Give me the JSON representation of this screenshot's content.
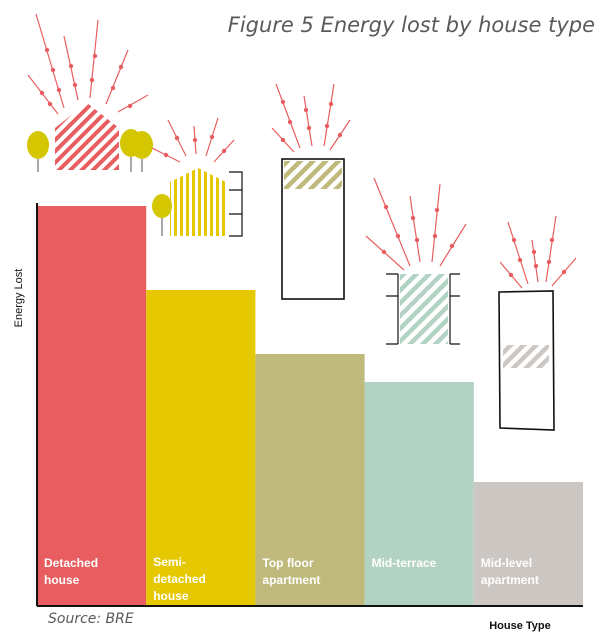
{
  "chart_data": {
    "type": "bar",
    "title": "Figure 5 Energy lost by house type",
    "xlabel": "House Type",
    "ylabel": "Energy Lost",
    "source": "Source: BRE",
    "ylim": [
      0,
      100
    ],
    "grid": false,
    "legend": "none",
    "y_ticks_shown": false,
    "categories": [
      {
        "label_lines": [
          "Detached",
          "house"
        ],
        "label_color": "#ffffff",
        "color": "#e85e60",
        "icon": "detached-house-icon"
      },
      {
        "label_lines": [
          "Semi-",
          "detached",
          "house"
        ],
        "label_color": "#ffffff",
        "color": "#e5c800",
        "icon": "semi-detached-house-icon"
      },
      {
        "label_lines": [
          "Top floor",
          "apartment"
        ],
        "label_color": "#ffffff",
        "color": "#bfba7c",
        "icon": "top-floor-apartment-icon"
      },
      {
        "label_lines": [
          "Mid-terrace"
        ],
        "label_color": "#ffffff",
        "color": "#b2d2c3",
        "icon": "mid-terrace-house-icon"
      },
      {
        "label_lines": [
          "Mid-level",
          "apartment"
        ],
        "label_color": "#ffffff",
        "color": "#ccc7c3",
        "icon": "mid-level-apartment-icon"
      }
    ],
    "values": [
      100,
      79,
      63,
      56,
      31
    ]
  },
  "colors": {
    "axis": "#111111",
    "heat_arrow": "#e85e60",
    "tree": "#d4c600",
    "outline": "#111111"
  }
}
